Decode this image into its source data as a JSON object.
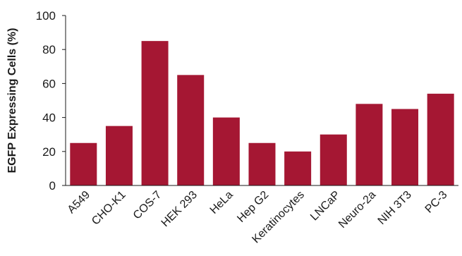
{
  "chart_data": {
    "type": "bar",
    "title": "",
    "xlabel": "",
    "ylabel": "EGFP Expressing Cells (%)",
    "ylim": [
      0,
      100
    ],
    "yticks": [
      0,
      20,
      40,
      60,
      80,
      100
    ],
    "grid": false,
    "categories": [
      "A549",
      "CHO-K1",
      "COS-7",
      "HEK 293",
      "HeLa",
      "Hep G2",
      "Keratinocytes",
      "LNCaP",
      "Neuro-2a",
      "NIH 3T3",
      "PC-3"
    ],
    "values": [
      25,
      35,
      85,
      65,
      40,
      25,
      20,
      30,
      48,
      45,
      54
    ],
    "bar_color": "#a51733"
  }
}
